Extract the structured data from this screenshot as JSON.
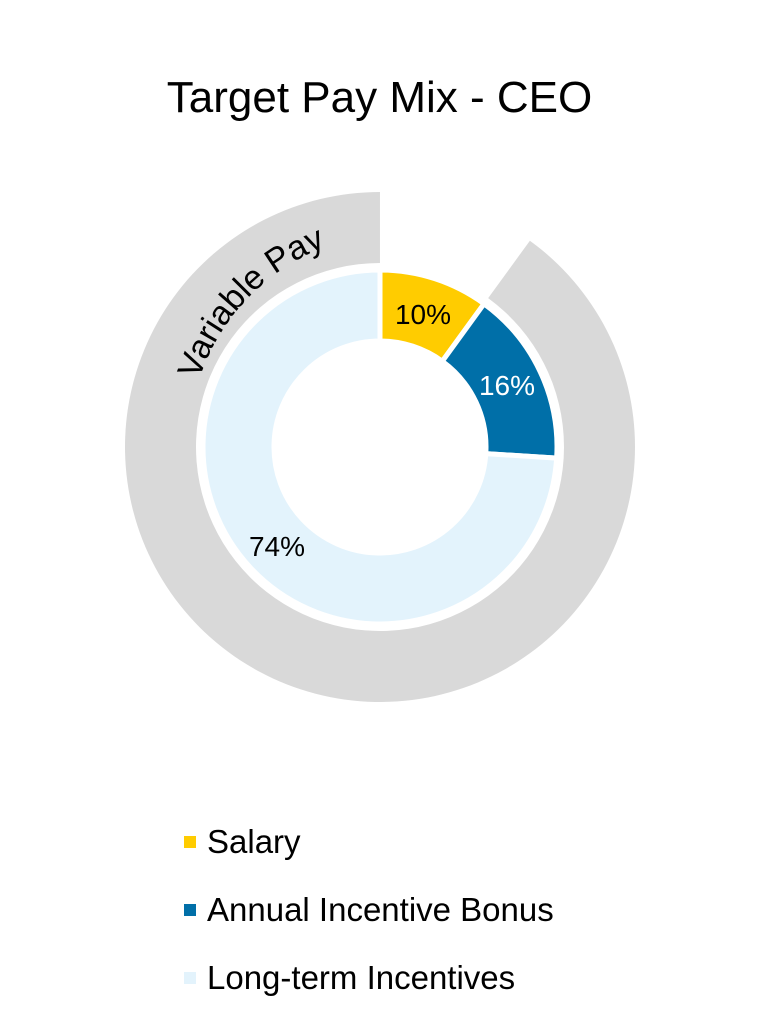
{
  "chart_data": {
    "type": "pie",
    "subtype": "donut-with-outer-grouping-ring",
    "title": "Target Pay Mix - CEO",
    "categories": [
      "Salary",
      "Annual Incentive Bonus",
      "Long-term Incentives"
    ],
    "values": [
      10,
      16,
      74
    ],
    "unit": "%",
    "data_labels": [
      "10%",
      "16%",
      "74%"
    ],
    "colors": [
      "#FFCC00",
      "#006FA8",
      "#E3F3FC"
    ],
    "label_colors": [
      "#000000",
      "#FFFFFF",
      "#000000"
    ],
    "outer_ring": {
      "label": "Variable Pay",
      "covers": [
        "Annual Incentive Bonus",
        "Long-term Incentives"
      ],
      "value": 90,
      "color": "#D9D9D9"
    },
    "legend": {
      "position": "bottom",
      "entries": [
        {
          "label": "Salary",
          "color": "#FFCC00"
        },
        {
          "label": "Annual Incentive Bonus",
          "color": "#006FA8"
        },
        {
          "label": "Long-term Incentives",
          "color": "#E3F3FC"
        }
      ]
    }
  },
  "labels": {
    "salary_pct": "10%",
    "bonus_pct": "16%",
    "lti_pct": "74%",
    "variable_pay": "Variable Pay"
  }
}
